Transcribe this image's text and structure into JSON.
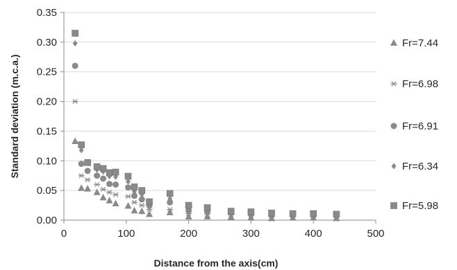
{
  "chart_data": {
    "type": "scatter",
    "title": "",
    "xlabel": "Distance from the axis(cm)",
    "ylabel": "Standard deviation (m.c.a.)",
    "xlim": [
      0,
      500
    ],
    "ylim": [
      0,
      0.35
    ],
    "x_ticks": [
      "0",
      "100",
      "200",
      "300",
      "400",
      "500"
    ],
    "y_ticks": [
      "0.00",
      "0.05",
      "0.10",
      "0.15",
      "0.20",
      "0.25",
      "0.30",
      "0.35"
    ],
    "grid": "horizontal",
    "legend_position": "right",
    "series": [
      {
        "name": "Fr=7.44",
        "marker": "triangle",
        "color": "#8a8a8a",
        "points": [
          [
            18,
            0.133
          ],
          [
            28,
            0.054
          ],
          [
            38,
            0.053
          ],
          [
            53,
            0.047
          ],
          [
            63,
            0.038
          ],
          [
            73,
            0.033
          ],
          [
            83,
            0.028
          ],
          [
            103,
            0.024
          ],
          [
            113,
            0.016
          ],
          [
            125,
            0.015
          ],
          [
            137,
            0.01
          ],
          [
            170,
            0.013
          ],
          [
            200,
            0.006
          ],
          [
            230,
            0.006
          ],
          [
            268,
            0.005
          ],
          [
            300,
            0.004
          ],
          [
            333,
            0.003
          ],
          [
            367,
            0.004
          ],
          [
            400,
            0.004
          ],
          [
            437,
            0.003
          ]
        ]
      },
      {
        "name": "Fr=6.98",
        "marker": "asterisk",
        "color": "#8a8a8a",
        "points": [
          [
            18,
            0.2
          ],
          [
            28,
            0.075
          ],
          [
            38,
            0.068
          ],
          [
            53,
            0.06
          ],
          [
            63,
            0.052
          ],
          [
            73,
            0.047
          ],
          [
            83,
            0.043
          ],
          [
            103,
            0.04
          ],
          [
            113,
            0.03
          ],
          [
            125,
            0.025
          ],
          [
            137,
            0.018
          ],
          [
            170,
            0.018
          ],
          [
            200,
            0.011
          ],
          [
            230,
            0.01
          ],
          [
            268,
            0.009
          ],
          [
            300,
            0.008
          ],
          [
            333,
            0.006
          ],
          [
            367,
            0.006
          ],
          [
            400,
            0.006
          ],
          [
            437,
            0.006
          ]
        ]
      },
      {
        "name": "Fr=6.91",
        "marker": "circle",
        "color": "#8a8a8a",
        "points": [
          [
            18,
            0.26
          ],
          [
            28,
            0.095
          ],
          [
            38,
            0.083
          ],
          [
            53,
            0.075
          ],
          [
            63,
            0.07
          ],
          [
            73,
            0.061
          ],
          [
            83,
            0.06
          ],
          [
            103,
            0.055
          ],
          [
            113,
            0.041
          ],
          [
            125,
            0.035
          ],
          [
            137,
            0.025
          ],
          [
            170,
            0.03
          ],
          [
            200,
            0.016
          ],
          [
            230,
            0.014
          ],
          [
            268,
            0.012
          ],
          [
            300,
            0.01
          ],
          [
            333,
            0.008
          ],
          [
            367,
            0.008
          ],
          [
            400,
            0.008
          ],
          [
            437,
            0.008
          ]
        ]
      },
      {
        "name": "Fr=6.34",
        "marker": "diamond",
        "color": "#8a8a8a",
        "points": [
          [
            18,
            0.298
          ],
          [
            28,
            0.118
          ],
          [
            38,
            0.097
          ],
          [
            53,
            0.085
          ],
          [
            63,
            0.082
          ],
          [
            73,
            0.074
          ],
          [
            83,
            0.073
          ],
          [
            103,
            0.065
          ],
          [
            113,
            0.048
          ],
          [
            125,
            0.043
          ],
          [
            137,
            0.028
          ],
          [
            170,
            0.036
          ],
          [
            200,
            0.02
          ],
          [
            230,
            0.017
          ],
          [
            268,
            0.013
          ],
          [
            300,
            0.012
          ],
          [
            333,
            0.01
          ],
          [
            367,
            0.009
          ],
          [
            400,
            0.009
          ],
          [
            437,
            0.008
          ]
        ]
      },
      {
        "name": "Fr=5.98",
        "marker": "square",
        "color": "#8a8a8a",
        "points": [
          [
            18,
            0.315
          ],
          [
            28,
            0.127
          ],
          [
            38,
            0.097
          ],
          [
            53,
            0.09
          ],
          [
            63,
            0.087
          ],
          [
            73,
            0.08
          ],
          [
            83,
            0.081
          ],
          [
            103,
            0.074
          ],
          [
            113,
            0.056
          ],
          [
            125,
            0.05
          ],
          [
            137,
            0.031
          ],
          [
            170,
            0.045
          ],
          [
            200,
            0.025
          ],
          [
            230,
            0.021
          ],
          [
            268,
            0.015
          ],
          [
            300,
            0.014
          ],
          [
            333,
            0.012
          ],
          [
            367,
            0.011
          ],
          [
            400,
            0.011
          ],
          [
            437,
            0.01
          ]
        ]
      }
    ]
  }
}
